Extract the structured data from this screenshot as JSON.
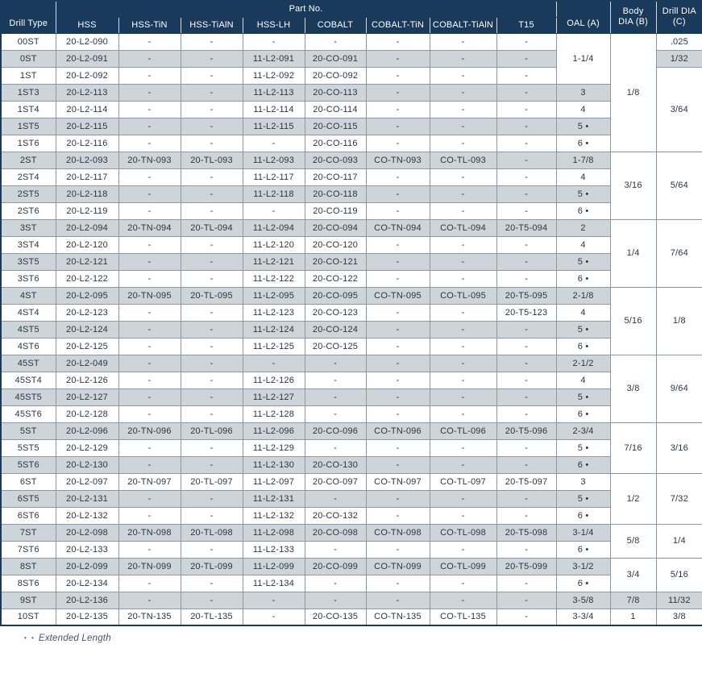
{
  "colors": {
    "header_bg": "#1a3a5c",
    "stripe_bg": "#cdd4da",
    "grid_border": "#8e969e",
    "header_text": "#ffffff",
    "body_text": "#2b3640",
    "footnote_text": "#44566b"
  },
  "table": {
    "header": {
      "drill_type": "Drill Type",
      "part_no": "Part No.",
      "part_columns": [
        "HSS",
        "HSS-TiN",
        "HSS-TiAlN",
        "HSS-LH",
        "COBALT",
        "COBALT-TiN",
        "COBALT-TiAlN",
        "T15"
      ],
      "oal": "OAL (A)",
      "body_dia": "Body DIA (B)",
      "drill_dia": "Drill DIA (C)"
    },
    "rows": [
      {
        "type": "00ST",
        "parts": [
          "20-L2-090",
          "-",
          "-",
          "-",
          "-",
          "-",
          "-",
          "-"
        ],
        "oal": {
          "v": "1-1/4",
          "s": 3
        },
        "body": {
          "v": "1/8",
          "s": 7
        },
        "drill": {
          "v": ".025",
          "s": 1
        }
      },
      {
        "type": "0ST",
        "parts": [
          "20-L2-091",
          "-",
          "-",
          "11-L2-091",
          "20-CO-091",
          "-",
          "-",
          "-"
        ],
        "drill": {
          "v": "1/32",
          "s": 1
        }
      },
      {
        "type": "1ST",
        "parts": [
          "20-L2-092",
          "-",
          "-",
          "11-L2-092",
          "20-CO-092",
          "-",
          "-",
          "-"
        ],
        "drill": {
          "v": "3/64",
          "s": 5
        }
      },
      {
        "type": "1ST3",
        "parts": [
          "20-L2-113",
          "-",
          "-",
          "11-L2-113",
          "20-CO-113",
          "-",
          "-",
          "-"
        ],
        "oal": {
          "v": "3",
          "s": 1
        }
      },
      {
        "type": "1ST4",
        "parts": [
          "20-L2-114",
          "-",
          "-",
          "11-L2-114",
          "20-CO-114",
          "-",
          "-",
          "-"
        ],
        "oal": {
          "v": "4",
          "s": 1
        }
      },
      {
        "type": "1ST5",
        "parts": [
          "20-L2-115",
          "-",
          "-",
          "11-L2-115",
          "20-CO-115",
          "-",
          "-",
          "-"
        ],
        "oal": {
          "v": "5 •",
          "s": 1
        }
      },
      {
        "type": "1ST6",
        "parts": [
          "20-L2-116",
          "-",
          "-",
          "-",
          "20-CO-116",
          "-",
          "-",
          "-"
        ],
        "oal": {
          "v": "6 •",
          "s": 1
        }
      },
      {
        "type": "2ST",
        "parts": [
          "20-L2-093",
          "20-TN-093",
          "20-TL-093",
          "11-L2-093",
          "20-CO-093",
          "CO-TN-093",
          "CO-TL-093",
          "-"
        ],
        "oal": {
          "v": "1-7/8",
          "s": 1
        },
        "body": {
          "v": "3/16",
          "s": 4
        },
        "drill": {
          "v": "5/64",
          "s": 4
        }
      },
      {
        "type": "2ST4",
        "parts": [
          "20-L2-117",
          "-",
          "-",
          "11-L2-117",
          "20-CO-117",
          "-",
          "-",
          "-"
        ],
        "oal": {
          "v": "4",
          "s": 1
        }
      },
      {
        "type": "2ST5",
        "parts": [
          "20-L2-118",
          "-",
          "-",
          "11-L2-118",
          "20-CO-118",
          "-",
          "-",
          "-"
        ],
        "oal": {
          "v": "5 •",
          "s": 1
        }
      },
      {
        "type": "2ST6",
        "parts": [
          "20-L2-119",
          "-",
          "-",
          "-",
          "20-CO-119",
          "-",
          "-",
          "-"
        ],
        "oal": {
          "v": "6 •",
          "s": 1
        }
      },
      {
        "type": "3ST",
        "parts": [
          "20-L2-094",
          "20-TN-094",
          "20-TL-094",
          "11-L2-094",
          "20-CO-094",
          "CO-TN-094",
          "CO-TL-094",
          "20-T5-094"
        ],
        "oal": {
          "v": "2",
          "s": 1
        },
        "body": {
          "v": "1/4",
          "s": 4
        },
        "drill": {
          "v": "7/64",
          "s": 4
        }
      },
      {
        "type": "3ST4",
        "parts": [
          "20-L2-120",
          "-",
          "-",
          "11-L2-120",
          "20-CO-120",
          "-",
          "-",
          "-"
        ],
        "oal": {
          "v": "4",
          "s": 1
        }
      },
      {
        "type": "3ST5",
        "parts": [
          "20-L2-121",
          "-",
          "-",
          "11-L2-121",
          "20-CO-121",
          "-",
          "-",
          "-"
        ],
        "oal": {
          "v": "5 •",
          "s": 1
        }
      },
      {
        "type": "3ST6",
        "parts": [
          "20-L2-122",
          "-",
          "-",
          "11-L2-122",
          "20-CO-122",
          "-",
          "-",
          "-"
        ],
        "oal": {
          "v": "6 •",
          "s": 1
        }
      },
      {
        "type": "4ST",
        "parts": [
          "20-L2-095",
          "20-TN-095",
          "20-TL-095",
          "11-L2-095",
          "20-CO-095",
          "CO-TN-095",
          "CO-TL-095",
          "20-T5-095"
        ],
        "oal": {
          "v": "2-1/8",
          "s": 1
        },
        "body": {
          "v": "5/16",
          "s": 4
        },
        "drill": {
          "v": "1/8",
          "s": 4
        }
      },
      {
        "type": "4ST4",
        "parts": [
          "20-L2-123",
          "-",
          "-",
          "11-L2-123",
          "20-CO-123",
          "-",
          "-",
          "20-T5-123"
        ],
        "oal": {
          "v": "4",
          "s": 1
        }
      },
      {
        "type": "4ST5",
        "parts": [
          "20-L2-124",
          "-",
          "-",
          "11-L2-124",
          "20-CO-124",
          "-",
          "-",
          "-"
        ],
        "oal": {
          "v": "5 •",
          "s": 1
        }
      },
      {
        "type": "4ST6",
        "parts": [
          "20-L2-125",
          "-",
          "-",
          "11-L2-125",
          "20-CO-125",
          "-",
          "-",
          "-"
        ],
        "oal": {
          "v": "6 •",
          "s": 1
        }
      },
      {
        "type": "45ST",
        "parts": [
          "20-L2-049",
          "-",
          "-",
          "-",
          "-",
          "-",
          "-",
          "-"
        ],
        "oal": {
          "v": "2-1/2",
          "s": 1
        },
        "body": {
          "v": "3/8",
          "s": 4
        },
        "drill": {
          "v": "9/64",
          "s": 4
        }
      },
      {
        "type": "45ST4",
        "parts": [
          "20-L2-126",
          "-",
          "-",
          "11-L2-126",
          "-",
          "-",
          "-",
          "-"
        ],
        "oal": {
          "v": "4",
          "s": 1
        }
      },
      {
        "type": "45ST5",
        "parts": [
          "20-L2-127",
          "-",
          "-",
          "11-L2-127",
          "-",
          "-",
          "-",
          "-"
        ],
        "oal": {
          "v": "5 •",
          "s": 1
        }
      },
      {
        "type": "45ST6",
        "parts": [
          "20-L2-128",
          "-",
          "-",
          "11-L2-128",
          "-",
          "-",
          "-",
          "-"
        ],
        "oal": {
          "v": "6 •",
          "s": 1
        }
      },
      {
        "type": "5ST",
        "parts": [
          "20-L2-096",
          "20-TN-096",
          "20-TL-096",
          "11-L2-096",
          "20-CO-096",
          "CO-TN-096",
          "CO-TL-096",
          "20-T5-096"
        ],
        "oal": {
          "v": "2-3/4",
          "s": 1
        },
        "body": {
          "v": "7/16",
          "s": 3
        },
        "drill": {
          "v": "3/16",
          "s": 3
        }
      },
      {
        "type": "5ST5",
        "parts": [
          "20-L2-129",
          "-",
          "-",
          "11-L2-129",
          "-",
          "-",
          "-",
          "-"
        ],
        "oal": {
          "v": "5 •",
          "s": 1
        }
      },
      {
        "type": "5ST6",
        "parts": [
          "20-L2-130",
          "-",
          "-",
          "11-L2-130",
          "20-CO-130",
          "-",
          "-",
          "-"
        ],
        "oal": {
          "v": "6 •",
          "s": 1
        }
      },
      {
        "type": "6ST",
        "parts": [
          "20-L2-097",
          "20-TN-097",
          "20-TL-097",
          "11-L2-097",
          "20-CO-097",
          "CO-TN-097",
          "CO-TL-097",
          "20-T5-097"
        ],
        "oal": {
          "v": "3",
          "s": 1
        },
        "body": {
          "v": "1/2",
          "s": 3
        },
        "drill": {
          "v": "7/32",
          "s": 3
        }
      },
      {
        "type": "6ST5",
        "parts": [
          "20-L2-131",
          "-",
          "-",
          "11-L2-131",
          "-",
          "-",
          "-",
          "-"
        ],
        "oal": {
          "v": "5 •",
          "s": 1
        }
      },
      {
        "type": "6ST6",
        "parts": [
          "20-L2-132",
          "-",
          "-",
          "11-L2-132",
          "20-CO-132",
          "-",
          "-",
          "-"
        ],
        "oal": {
          "v": "6 •",
          "s": 1
        }
      },
      {
        "type": "7ST",
        "parts": [
          "20-L2-098",
          "20-TN-098",
          "20-TL-098",
          "11-L2-098",
          "20-CO-098",
          "CO-TN-098",
          "CO-TL-098",
          "20-T5-098"
        ],
        "oal": {
          "v": "3-1/4",
          "s": 1
        },
        "body": {
          "v": "5/8",
          "s": 2
        },
        "drill": {
          "v": "1/4",
          "s": 2
        }
      },
      {
        "type": "7ST6",
        "parts": [
          "20-L2-133",
          "-",
          "-",
          "11-L2-133",
          "-",
          "-",
          "-",
          "-"
        ],
        "oal": {
          "v": "6 •",
          "s": 1
        }
      },
      {
        "type": "8ST",
        "parts": [
          "20-L2-099",
          "20-TN-099",
          "20-TL-099",
          "11-L2-099",
          "20-CO-099",
          "CO-TN-099",
          "CO-TL-099",
          "20-T5-099"
        ],
        "oal": {
          "v": "3-1/2",
          "s": 1
        },
        "body": {
          "v": "3/4",
          "s": 2
        },
        "drill": {
          "v": "5/16",
          "s": 2
        }
      },
      {
        "type": "8ST6",
        "parts": [
          "20-L2-134",
          "-",
          "-",
          "11-L2-134",
          "-",
          "-",
          "-",
          "-"
        ],
        "oal": {
          "v": "6 •",
          "s": 1
        }
      },
      {
        "type": "9ST",
        "parts": [
          "20-L2-136",
          "-",
          "-",
          "-",
          "-",
          "-",
          "-",
          "-"
        ],
        "oal": {
          "v": "3-5/8",
          "s": 1
        },
        "body": {
          "v": "7/8",
          "s": 1
        },
        "drill": {
          "v": "11/32",
          "s": 1
        }
      },
      {
        "type": "10ST",
        "parts": [
          "20-L2-135",
          "20-TN-135",
          "20-TL-135",
          "-",
          "20-CO-135",
          "CO-TN-135",
          "CO-TL-135",
          "-"
        ],
        "oal": {
          "v": "3-3/4",
          "s": 1
        },
        "body": {
          "v": "1",
          "s": 1
        },
        "drill": {
          "v": "3/8",
          "s": 1
        }
      }
    ],
    "footnote": {
      "marker": "• •",
      "text": "Extended Length"
    }
  }
}
